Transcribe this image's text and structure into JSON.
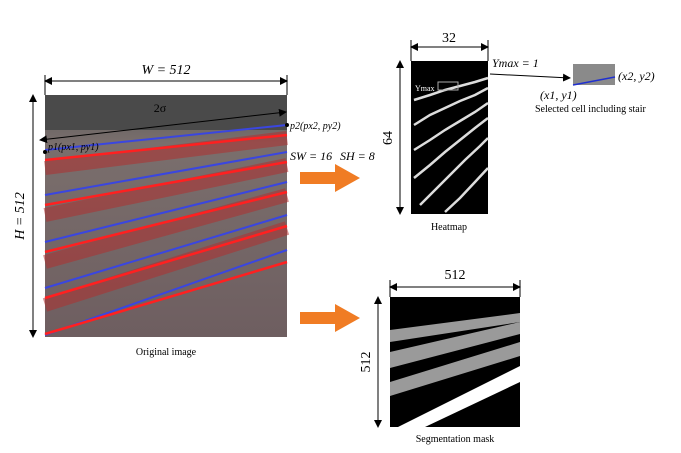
{
  "original": {
    "width_label": "W = 512",
    "height_label": "H = 512",
    "sigma_label": "2σ",
    "p1_label": "p1(px1, py1)",
    "p2_label": "p2(px2, py2)",
    "sw_label": "SW = 16",
    "sh_label": "SH = 8",
    "caption": "Original image"
  },
  "heatmap": {
    "width_label": "32",
    "height_label": "64",
    "ymax_label": "Ymax = 1",
    "inner_label": "Ymax",
    "caption": "Heatmap"
  },
  "cell": {
    "p1_label": "(x1, y1)",
    "p2_label": "(x2, y2)",
    "caption": "Selected cell including stair"
  },
  "mask": {
    "width_label": "512",
    "height_label": "512",
    "caption": "Segmentation mask"
  }
}
